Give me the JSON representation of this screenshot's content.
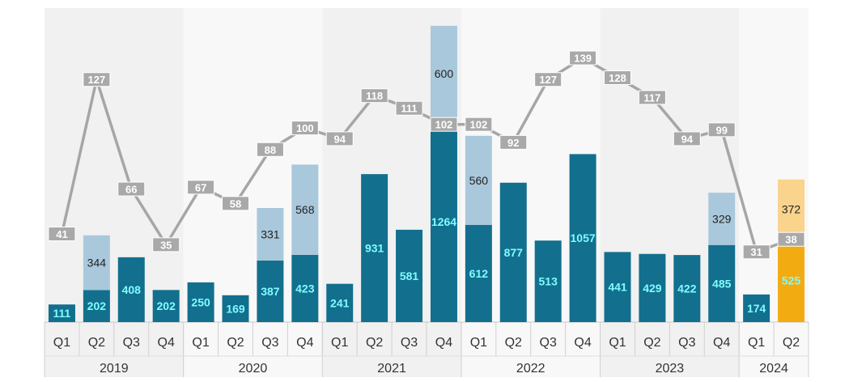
{
  "chart_data": {
    "type": "bar",
    "title": "",
    "xlabel": "",
    "ylabel": "",
    "ylim": [
      0,
      1950
    ],
    "line_ylim": [
      0,
      160
    ],
    "years": [
      "2019",
      "2020",
      "2021",
      "2022",
      "2023",
      "2024"
    ],
    "categories": [
      {
        "year": "2019",
        "quarter": "Q1"
      },
      {
        "year": "2019",
        "quarter": "Q2"
      },
      {
        "year": "2019",
        "quarter": "Q3"
      },
      {
        "year": "2019",
        "quarter": "Q4"
      },
      {
        "year": "2020",
        "quarter": "Q1"
      },
      {
        "year": "2020",
        "quarter": "Q2"
      },
      {
        "year": "2020",
        "quarter": "Q3"
      },
      {
        "year": "2020",
        "quarter": "Q4"
      },
      {
        "year": "2021",
        "quarter": "Q1"
      },
      {
        "year": "2021",
        "quarter": "Q2"
      },
      {
        "year": "2021",
        "quarter": "Q3"
      },
      {
        "year": "2021",
        "quarter": "Q4"
      },
      {
        "year": "2022",
        "quarter": "Q1"
      },
      {
        "year": "2022",
        "quarter": "Q2"
      },
      {
        "year": "2022",
        "quarter": "Q3"
      },
      {
        "year": "2022",
        "quarter": "Q4"
      },
      {
        "year": "2023",
        "quarter": "Q1"
      },
      {
        "year": "2023",
        "quarter": "Q2"
      },
      {
        "year": "2023",
        "quarter": "Q3"
      },
      {
        "year": "2023",
        "quarter": "Q4"
      },
      {
        "year": "2024",
        "quarter": "Q1"
      },
      {
        "year": "2024",
        "quarter": "Q2"
      }
    ],
    "series": [
      {
        "name": "primary",
        "kind": "bar",
        "values": [
          111,
          202,
          408,
          202,
          250,
          169,
          387,
          423,
          241,
          931,
          581,
          1264,
          612,
          877,
          513,
          1057,
          441,
          429,
          422,
          485,
          174,
          525
        ]
      },
      {
        "name": "stacked",
        "kind": "bar-stack",
        "values": [
          null,
          344,
          null,
          null,
          null,
          null,
          331,
          568,
          null,
          null,
          null,
          600,
          560,
          null,
          null,
          null,
          null,
          null,
          null,
          329,
          null,
          372
        ]
      },
      {
        "name": "line",
        "kind": "line",
        "values": [
          41,
          127,
          66,
          35,
          67,
          58,
          88,
          100,
          94,
          118,
          111,
          102,
          102,
          92,
          127,
          139,
          128,
          117,
          94,
          99,
          31,
          38
        ]
      }
    ],
    "highlight_index": 21,
    "grid": false,
    "legend": "none"
  },
  "colors": {
    "bar": "#136f8e",
    "stack": "#a9c8dc",
    "bar_highlight": "#f2ac12",
    "stack_highlight": "#fad38d",
    "line": "#a6a6a6",
    "line_label_bg": "#a9a9a9",
    "bar_label": "#7ffcff",
    "bar_label_highlight": "#ffffff",
    "band_dark": "#f1f1f1",
    "band_light": "#f8f8f8"
  }
}
